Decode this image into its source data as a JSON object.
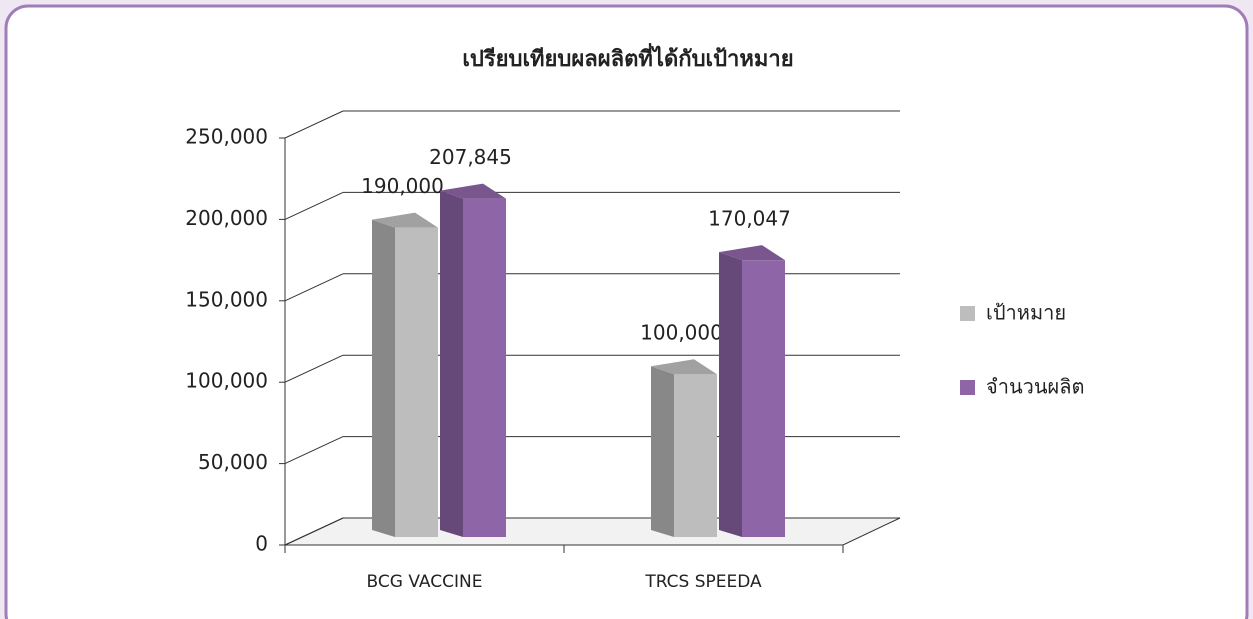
{
  "chart_data": {
    "type": "bar3d",
    "title": "เปรียบเทียบผลผลิตที่ได้กับเป้าหมาย",
    "categories": [
      "BCG VACCINE",
      "TRCS SPEEDA"
    ],
    "series": [
      {
        "name": "เป้าหมาย",
        "color": "#bdbdbd",
        "values": [
          190000,
          100000
        ],
        "value_labels": [
          "190,000",
          "100,000"
        ]
      },
      {
        "name": "จำนวนผลิต",
        "color": "#8e65a6",
        "values": [
          207845,
          170047
        ],
        "value_labels": [
          "207,845",
          "170,047"
        ]
      }
    ],
    "ylim": [
      0,
      250000
    ],
    "yticks": [
      0,
      {
        "value": 50000,
        "label": "50,000"
      },
      {
        "value": 100000,
        "label": "100,000"
      },
      {
        "value": 150000,
        "label": "150,000"
      },
      {
        "value": 200000,
        "label": "200,000"
      },
      {
        "value": 250000,
        "label": "250,000"
      }
    ],
    "grid": true,
    "legend": "right"
  }
}
